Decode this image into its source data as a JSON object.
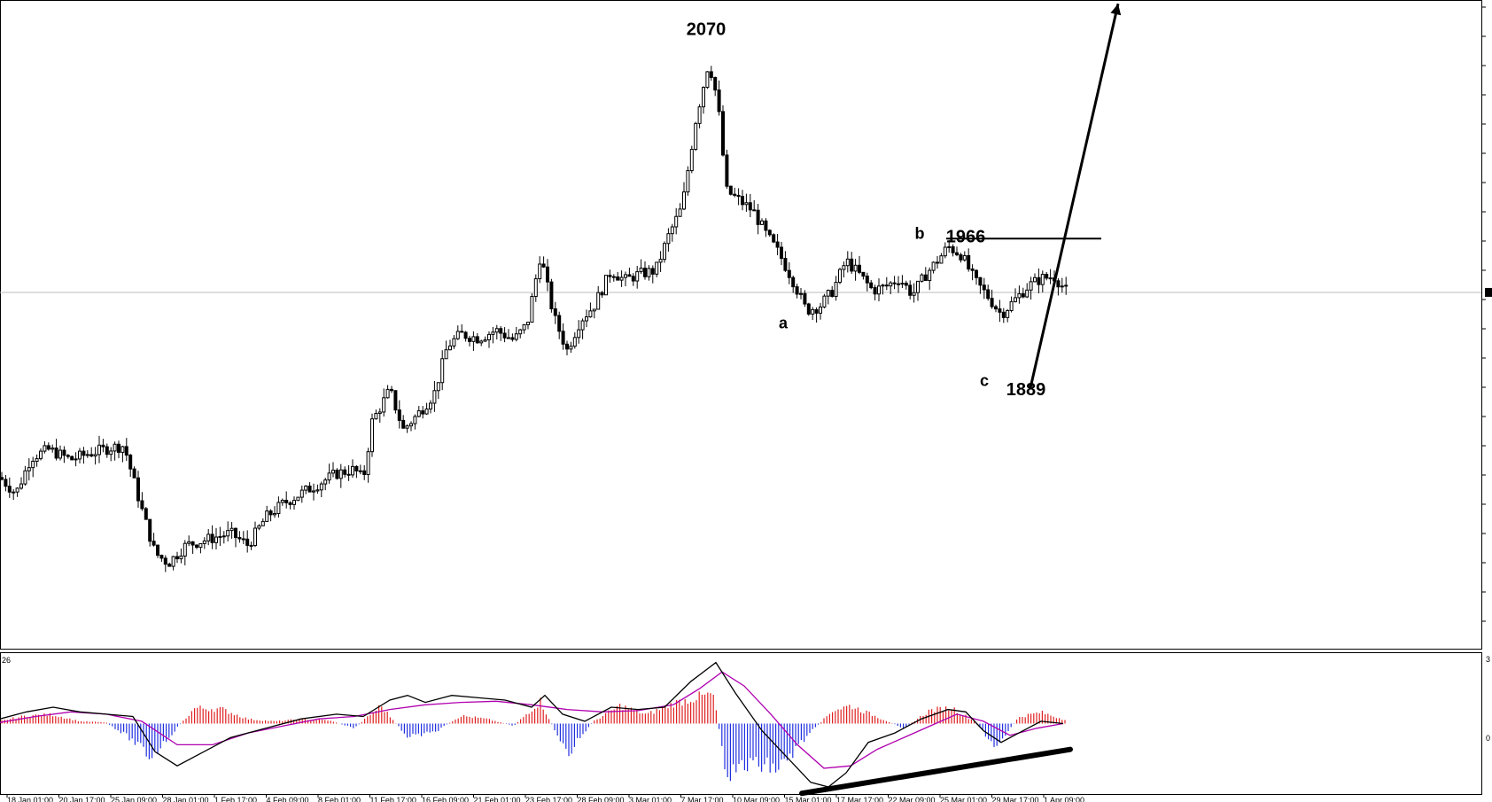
{
  "chart_data": [
    {
      "panel": "price",
      "type": "candlestick",
      "xlabel": "",
      "ylabel": "",
      "ylim": [
        1760,
        2085
      ],
      "x_ticks": [
        "18 Jan 01:00",
        "20 Jan 17:00",
        "25 Jan 09:00",
        "28 Jan 01:00",
        "1 Feb 17:00",
        "4 Feb 09:00",
        "8 Feb 01:00",
        "11 Feb 17:00",
        "16 Feb 09:00",
        "21 Feb 01:00",
        "23 Feb 17:00",
        "28 Feb 09:00",
        "3 Mar 01:00",
        "7 Mar 17:00",
        "10 Mar 09:00",
        "15 Mar 01:00",
        "17 Mar 17:00",
        "22 Mar 09:00",
        "25 Mar 01:00",
        "29 Mar 17:00",
        "1 Apr 09:00"
      ],
      "close_path": [
        [
          0,
          1846
        ],
        [
          18,
          1838
        ],
        [
          35,
          1856
        ],
        [
          55,
          1860
        ],
        [
          80,
          1855
        ],
        [
          100,
          1858
        ],
        [
          125,
          1861
        ],
        [
          140,
          1862
        ],
        [
          160,
          1830
        ],
        [
          175,
          1808
        ],
        [
          190,
          1803
        ],
        [
          210,
          1812
        ],
        [
          235,
          1815
        ],
        [
          260,
          1818
        ],
        [
          280,
          1812
        ],
        [
          300,
          1826
        ],
        [
          320,
          1833
        ],
        [
          340,
          1838
        ],
        [
          360,
          1843
        ],
        [
          380,
          1848
        ],
        [
          400,
          1850
        ],
        [
          410,
          1845
        ],
        [
          420,
          1874
        ],
        [
          440,
          1890
        ],
        [
          455,
          1870
        ],
        [
          470,
          1877
        ],
        [
          490,
          1888
        ],
        [
          505,
          1912
        ],
        [
          520,
          1918
        ],
        [
          540,
          1916
        ],
        [
          560,
          1920
        ],
        [
          580,
          1915
        ],
        [
          595,
          1923
        ],
        [
          610,
          1958
        ],
        [
          625,
          1927
        ],
        [
          640,
          1910
        ],
        [
          655,
          1925
        ],
        [
          670,
          1932
        ],
        [
          690,
          1950
        ],
        [
          705,
          1945
        ],
        [
          720,
          1948
        ],
        [
          740,
          1950
        ],
        [
          755,
          1968
        ],
        [
          770,
          1982
        ],
        [
          785,
          2025
        ],
        [
          800,
          2055
        ],
        [
          810,
          2035
        ],
        [
          820,
          1990
        ],
        [
          835,
          1985
        ],
        [
          850,
          1980
        ],
        [
          865,
          1968
        ],
        [
          880,
          1958
        ],
        [
          895,
          1945
        ],
        [
          910,
          1930
        ],
        [
          925,
          1932
        ],
        [
          940,
          1940
        ],
        [
          955,
          1955
        ],
        [
          970,
          1948
        ],
        [
          985,
          1940
        ],
        [
          1000,
          1942
        ],
        [
          1015,
          1946
        ],
        [
          1030,
          1938
        ],
        [
          1045,
          1948
        ],
        [
          1060,
          1956
        ],
        [
          1070,
          1962
        ],
        [
          1085,
          1958
        ],
        [
          1100,
          1945
        ],
        [
          1115,
          1937
        ],
        [
          1130,
          1928
        ],
        [
          1145,
          1935
        ],
        [
          1160,
          1942
        ],
        [
          1175,
          1946
        ],
        [
          1190,
          1947
        ],
        [
          1205,
          1939
        ]
      ],
      "reference_line": 1939,
      "annotations": [
        {
          "label": "2070",
          "value": 2070,
          "x_index": 797
        },
        {
          "label": "1966",
          "value": 1966,
          "x_index": 1090
        },
        {
          "label": "b",
          "value": 1966,
          "x_index": 1038
        },
        {
          "label": "a",
          "value": 1921,
          "x_index": 884
        },
        {
          "label": "c",
          "value": 1892,
          "x_index": 1111
        },
        {
          "label": "1889",
          "value": 1889,
          "x_index": 1158
        }
      ],
      "resistance_line": {
        "from": [
          1068,
          1966
        ],
        "to": [
          1243,
          1966
        ]
      },
      "projection_arrow": {
        "from": [
          1163,
          1891
        ],
        "to": [
          1262,
          2084
        ]
      }
    },
    {
      "panel": "macd",
      "type": "histogram+line",
      "title": "",
      "ylim": [
        -3,
        3
      ],
      "histogram": [
        [
          0,
          0.12
        ],
        [
          30,
          0.35
        ],
        [
          60,
          0.4
        ],
        [
          90,
          0.1
        ],
        [
          120,
          0.05
        ],
        [
          145,
          -0.6
        ],
        [
          170,
          -1.5
        ],
        [
          195,
          -0.4
        ],
        [
          220,
          0.7
        ],
        [
          250,
          0.65
        ],
        [
          280,
          0.2
        ],
        [
          310,
          0.1
        ],
        [
          340,
          0.2
        ],
        [
          370,
          0.15
        ],
        [
          400,
          -0.2
        ],
        [
          430,
          0.8
        ],
        [
          460,
          -0.6
        ],
        [
          490,
          -0.4
        ],
        [
          520,
          0.35
        ],
        [
          550,
          0.2
        ],
        [
          580,
          -0.1
        ],
        [
          610,
          1.0
        ],
        [
          640,
          -1.4
        ],
        [
          670,
          0.1
        ],
        [
          700,
          0.8
        ],
        [
          730,
          0.4
        ],
        [
          760,
          0.9
        ],
        [
          790,
          1.2
        ],
        [
          805,
          1.3
        ],
        [
          820,
          -2.2
        ],
        [
          850,
          -1.8
        ],
        [
          880,
          -2.0
        ],
        [
          910,
          -0.6
        ],
        [
          940,
          0.6
        ],
        [
          960,
          0.8
        ],
        [
          990,
          0.3
        ],
        [
          1020,
          -0.2
        ],
        [
          1050,
          0.6
        ],
        [
          1075,
          0.7
        ],
        [
          1100,
          0.1
        ],
        [
          1125,
          -1.1
        ],
        [
          1150,
          0.3
        ],
        [
          1175,
          0.5
        ],
        [
          1200,
          0.2
        ]
      ],
      "macd_line": [
        [
          0,
          0.2
        ],
        [
          30,
          0.5
        ],
        [
          60,
          0.7
        ],
        [
          90,
          0.5
        ],
        [
          120,
          0.4
        ],
        [
          150,
          0.3
        ],
        [
          175,
          -1.2
        ],
        [
          200,
          -1.8
        ],
        [
          230,
          -1.2
        ],
        [
          260,
          -0.6
        ],
        [
          300,
          -0.2
        ],
        [
          340,
          0.2
        ],
        [
          380,
          0.4
        ],
        [
          410,
          0.3
        ],
        [
          440,
          1.0
        ],
        [
          460,
          1.2
        ],
        [
          480,
          0.9
        ],
        [
          510,
          1.2
        ],
        [
          540,
          1.1
        ],
        [
          570,
          1.0
        ],
        [
          600,
          0.7
        ],
        [
          615,
          1.2
        ],
        [
          635,
          0.4
        ],
        [
          660,
          0.1
        ],
        [
          690,
          0.7
        ],
        [
          720,
          0.6
        ],
        [
          750,
          0.7
        ],
        [
          780,
          1.8
        ],
        [
          808,
          2.6
        ],
        [
          830,
          1.3
        ],
        [
          860,
          -0.3
        ],
        [
          890,
          -1.5
        ],
        [
          915,
          -2.5
        ],
        [
          935,
          -2.7
        ],
        [
          955,
          -2.1
        ],
        [
          980,
          -0.8
        ],
        [
          1010,
          -0.4
        ],
        [
          1040,
          0.2
        ],
        [
          1070,
          0.6
        ],
        [
          1090,
          0.5
        ],
        [
          1110,
          -0.3
        ],
        [
          1130,
          -0.8
        ],
        [
          1150,
          -0.4
        ],
        [
          1175,
          0.1
        ],
        [
          1200,
          0.0
        ]
      ],
      "signal_line": [
        [
          0,
          0.05
        ],
        [
          40,
          0.3
        ],
        [
          80,
          0.5
        ],
        [
          120,
          0.4
        ],
        [
          160,
          0.1
        ],
        [
          200,
          -0.9
        ],
        [
          240,
          -0.9
        ],
        [
          280,
          -0.4
        ],
        [
          320,
          -0.1
        ],
        [
          360,
          0.2
        ],
        [
          400,
          0.3
        ],
        [
          440,
          0.6
        ],
        [
          480,
          0.8
        ],
        [
          520,
          0.9
        ],
        [
          560,
          0.95
        ],
        [
          600,
          0.8
        ],
        [
          640,
          0.6
        ],
        [
          680,
          0.5
        ],
        [
          720,
          0.55
        ],
        [
          760,
          0.8
        ],
        [
          790,
          1.5
        ],
        [
          815,
          2.2
        ],
        [
          840,
          1.6
        ],
        [
          870,
          0.4
        ],
        [
          900,
          -0.9
        ],
        [
          930,
          -1.9
        ],
        [
          960,
          -1.8
        ],
        [
          990,
          -1.1
        ],
        [
          1020,
          -0.6
        ],
        [
          1050,
          -0.1
        ],
        [
          1080,
          0.4
        ],
        [
          1110,
          0.1
        ],
        [
          1140,
          -0.5
        ],
        [
          1170,
          -0.2
        ],
        [
          1200,
          0.0
        ]
      ],
      "trend_line": {
        "from": [
          905,
          -2.97
        ],
        "to": [
          1208,
          -1.1
        ]
      },
      "zero_label": "0",
      "upper_label": "3"
    }
  ],
  "colors": {
    "candle": "#000000",
    "hist_positive": "#e02020",
    "hist_negative": "#2030e0",
    "macd_line": "#000000",
    "signal_line": "#b000b0",
    "reference_line": "#bbbbbb",
    "frame": "#000000"
  },
  "macd_params_fragment": "26"
}
